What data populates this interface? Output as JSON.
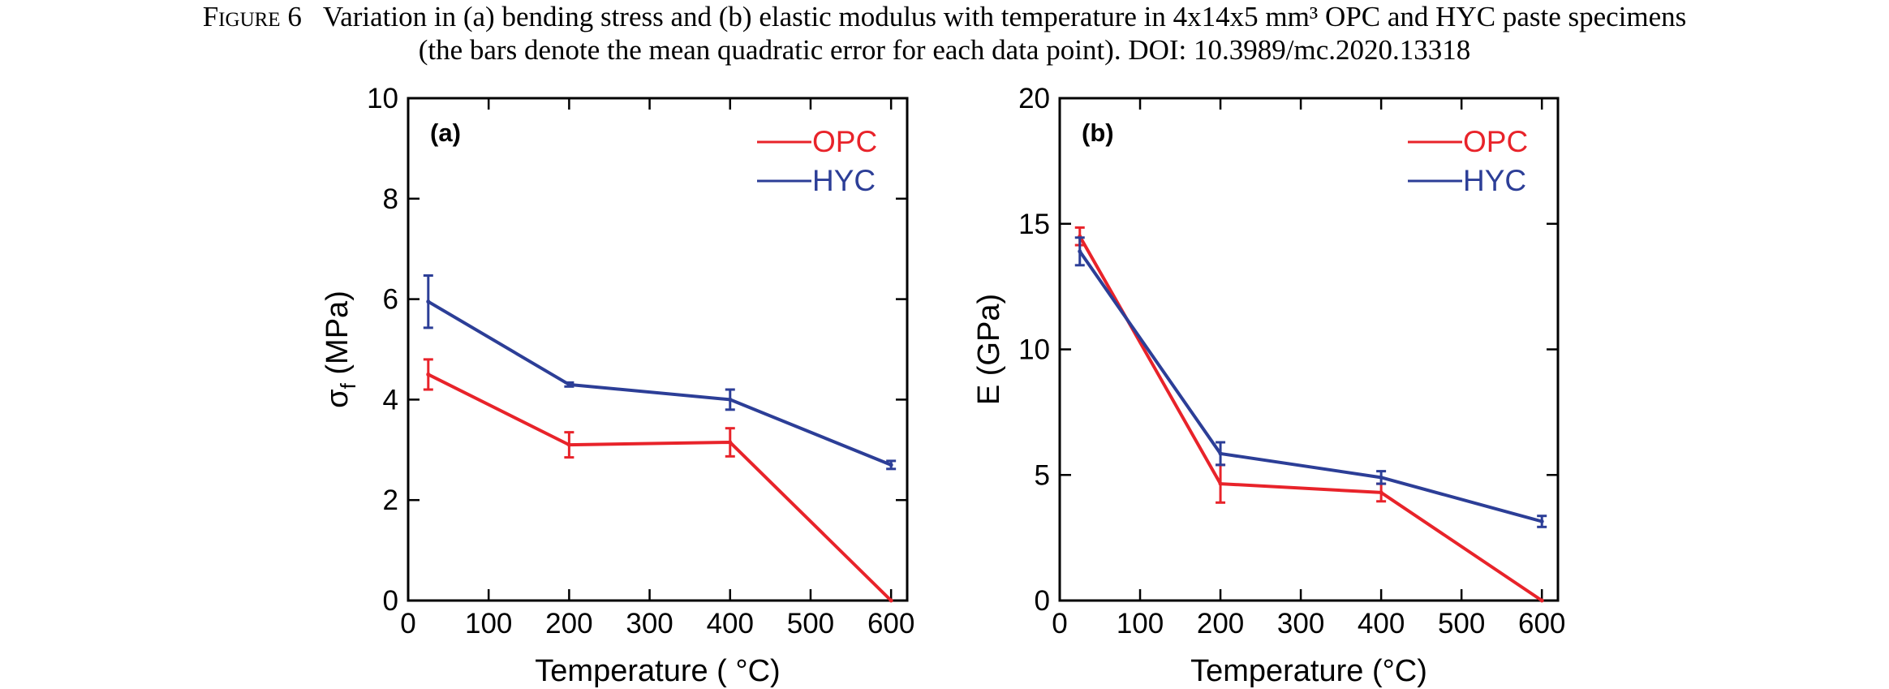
{
  "caption": {
    "label": "Figure 6",
    "line1": "Variation in (a) bending stress and (b) elastic modulus with temperature in 4x14x5 mm³ OPC and HYC paste specimens",
    "line2": "(the bars denote the mean quadratic error for each data point). DOI: 10.3989/mc.2020.13318"
  },
  "colors": {
    "OPC": "#e8232a",
    "HYC": "#2c3e97"
  },
  "chart_data": [
    {
      "type": "line",
      "panel_label": "(a)",
      "xlabel": "Temperature ( °C)",
      "ylabel_main": "σ",
      "ylabel_sub": "f",
      "ylabel_rest": " (MPa)",
      "xlim": [
        0,
        620
      ],
      "ylim": [
        0,
        10
      ],
      "xticks": [
        0,
        100,
        200,
        300,
        400,
        500,
        600
      ],
      "yticks": [
        0,
        2,
        4,
        6,
        8,
        10
      ],
      "legend_position": "top-right",
      "series": [
        {
          "name": "OPC",
          "x": [
            25,
            200,
            400,
            600
          ],
          "y": [
            4.5,
            3.1,
            3.15,
            0
          ],
          "err": [
            0.3,
            0.25,
            0.28,
            0
          ]
        },
        {
          "name": "HYC",
          "x": [
            25,
            200,
            400,
            600
          ],
          "y": [
            5.95,
            4.3,
            4.0,
            2.7
          ],
          "err": [
            0.52,
            0.04,
            0.2,
            0.08
          ]
        }
      ]
    },
    {
      "type": "line",
      "panel_label": "(b)",
      "xlabel": "Temperature (°C)",
      "ylabel_main": "E (GPa)",
      "ylabel_sub": "",
      "ylabel_rest": "",
      "xlim": [
        0,
        620
      ],
      "ylim": [
        0,
        20
      ],
      "xticks": [
        0,
        100,
        200,
        300,
        400,
        500,
        600
      ],
      "yticks": [
        0,
        5,
        10,
        15,
        20
      ],
      "legend_position": "top-right",
      "series": [
        {
          "name": "OPC",
          "x": [
            25,
            200,
            400,
            600
          ],
          "y": [
            14.5,
            4.65,
            4.3,
            0
          ],
          "err": [
            0.35,
            0.75,
            0.35,
            0
          ]
        },
        {
          "name": "HYC",
          "x": [
            25,
            200,
            400,
            600
          ],
          "y": [
            13.9,
            5.85,
            4.9,
            3.15
          ],
          "err": [
            0.55,
            0.45,
            0.25,
            0.22
          ]
        }
      ]
    }
  ]
}
